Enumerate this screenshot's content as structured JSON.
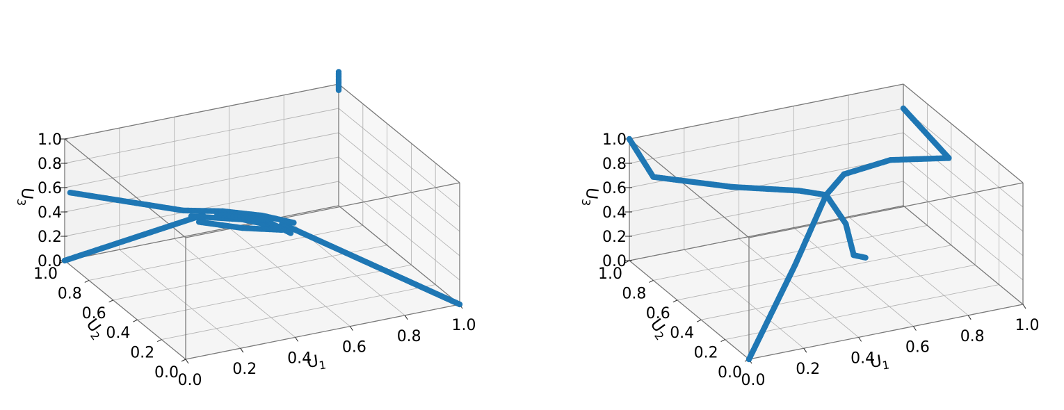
{
  "colors": {
    "series": "#1f77b4",
    "pane_back": "#f2f2f2",
    "pane_side": "#f7f7f7",
    "pane_floor": "#f5f5f5",
    "edge": "#7a7a7a",
    "grid": "#b5b5b5"
  },
  "chart_data": [
    {
      "type": "scatter",
      "projection": "3d",
      "xlabel": "U1",
      "ylabel": "U2",
      "zlabel": "U3",
      "xlim": [
        0,
        1
      ],
      "ylim": [
        0,
        1
      ],
      "zlim": [
        0,
        1
      ],
      "x_ticks": [
        "0.0",
        "0.2",
        "0.4",
        "0.6",
        "0.8",
        "1.0"
      ],
      "y_ticks": [
        "0.0",
        "0.2",
        "0.4",
        "0.6",
        "0.8",
        "1.0"
      ],
      "z_ticks": [
        "0.0",
        "0.2",
        "0.4",
        "0.6",
        "0.8",
        "1.0"
      ],
      "grid": true,
      "series": [
        {
          "curves": [
            [
              [
                0.0,
                1.0,
                0.0
              ],
              [
                0.35,
                0.65,
                0.5
              ]
            ],
            [
              [
                1.0,
                0.0,
                0.0
              ],
              [
                0.55,
                0.45,
                0.5
              ]
            ],
            [
              [
                0.02,
                1.0,
                0.55
              ],
              [
                0.3,
                0.7,
                0.52
              ]
            ],
            [
              [
                0.3,
                0.7,
                0.52
              ],
              [
                0.4,
                0.6,
                0.55
              ],
              [
                0.5,
                0.5,
                0.55
              ],
              [
                0.58,
                0.42,
                0.52
              ]
            ],
            [
              [
                0.32,
                0.68,
                0.48
              ],
              [
                0.45,
                0.55,
                0.5
              ],
              [
                0.55,
                0.45,
                0.47
              ]
            ],
            [
              [
                0.34,
                0.66,
                0.44
              ],
              [
                0.45,
                0.55,
                0.43
              ],
              [
                0.55,
                0.45,
                0.45
              ]
            ],
            [
              [
                0.38,
                0.6,
                0.53
              ],
              [
                0.5,
                0.48,
                0.53
              ],
              [
                0.56,
                0.4,
                0.46
              ]
            ],
            [
              [
                1.0,
                1.0,
                0.95
              ],
              [
                1.0,
                1.0,
                1.1
              ]
            ]
          ]
        }
      ]
    },
    {
      "type": "scatter",
      "projection": "3d",
      "xlabel": "U1",
      "ylabel": "U2",
      "zlabel": "U3",
      "xlim": [
        0,
        1
      ],
      "ylim": [
        0,
        1
      ],
      "zlim": [
        0,
        1
      ],
      "x_ticks": [
        "0.0",
        "0.2",
        "0.4",
        "0.6",
        "0.8",
        "1.0"
      ],
      "y_ticks": [
        "0.0",
        "0.2",
        "0.4",
        "0.6",
        "0.8",
        "1.0"
      ],
      "z_ticks": [
        "0.0",
        "0.2",
        "0.4",
        "0.6",
        "0.8",
        "1.0"
      ],
      "grid": true,
      "series": [
        {
          "curves": [
            [
              [
                0.0,
                1.0,
                1.0
              ],
              [
                0.0,
                0.8,
                0.85
              ],
              [
                0.2,
                0.6,
                0.84
              ],
              [
                0.4,
                0.5,
                0.8
              ],
              [
                0.5,
                0.5,
                0.72
              ]
            ],
            [
              [
                0.5,
                0.5,
                0.72
              ],
              [
                0.6,
                0.58,
                0.78
              ],
              [
                0.8,
                0.65,
                0.75
              ],
              [
                1.0,
                0.62,
                0.7
              ],
              [
                1.0,
                1.0,
                0.8
              ]
            ],
            [
              [
                0.5,
                0.5,
                0.72
              ],
              [
                0.55,
                0.45,
                0.5
              ],
              [
                0.57,
                0.43,
                0.25
              ],
              [
                0.6,
                0.4,
                0.24
              ]
            ],
            [
              [
                0.5,
                0.5,
                0.72
              ],
              [
                0.3,
                0.3,
                0.4
              ],
              [
                0.0,
                0.0,
                0.0
              ]
            ]
          ]
        }
      ]
    }
  ]
}
